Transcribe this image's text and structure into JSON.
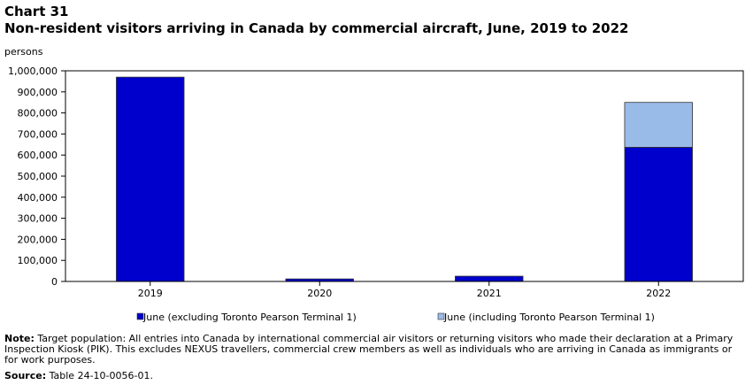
{
  "chart_number": "Chart 31",
  "title": "Non-resident visitors arriving in Canada by commercial aircraft, June, 2019 to 2022",
  "unit": "persons",
  "note_label": "Note:",
  "note_text": "Target population: All entries into Canada by international commercial air visitors or returning visitors who made their declaration at a Primary Inspection Kiosk (PIK). This excludes NEXUS travellers, commercial crew members as well as individuals who are arriving in Canada as immigrants or for work purposes.",
  "source_label": "Source:",
  "source_text": "Table 24-10-0056-01.",
  "chart_data": {
    "type": "bar",
    "stacked": true,
    "categories": [
      "2019",
      "2020",
      "2021",
      "2022"
    ],
    "series": [
      {
        "name": "June (excluding Toronto Pearson Terminal 1)",
        "values": [
          970000,
          12000,
          25000,
          637000
        ],
        "color": "#0000cc"
      },
      {
        "name": "June (including Toronto Pearson Terminal 1)",
        "values": [
          0,
          0,
          0,
          213000
        ],
        "color": "#99bbe8"
      }
    ],
    "ylim": [
      0,
      1000000
    ],
    "yticks": [
      "0",
      "100,000",
      "200,000",
      "300,000",
      "400,000",
      "500,000",
      "600,000",
      "700,000",
      "800,000",
      "900,000",
      "1,000,000"
    ],
    "legend_position": "bottom",
    "grid": false
  }
}
